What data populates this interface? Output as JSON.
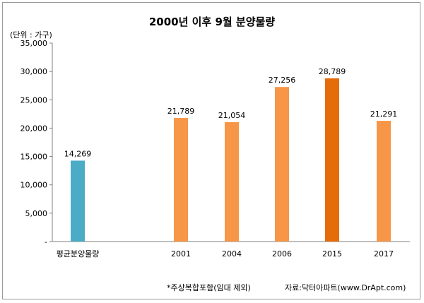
{
  "chart_data": {
    "type": "bar",
    "title": "2000년 이후 9월 분양물량",
    "unit_label": "(단위 : 가구)",
    "categories": [
      "평균분양물량",
      "2001",
      "2004",
      "2006",
      "2015",
      "2017"
    ],
    "values": [
      14269,
      21789,
      21054,
      27256,
      28789,
      21291
    ],
    "value_labels": [
      "14,269",
      "21,789",
      "21,054",
      "27,256",
      "28,789",
      "21,291"
    ],
    "ylim": [
      0,
      35000
    ],
    "y_ticks": [
      0,
      5000,
      10000,
      15000,
      20000,
      25000,
      30000,
      35000
    ],
    "y_tick_labels": [
      "-",
      "5,000",
      "10,000",
      "15,000",
      "20,000",
      "25,000",
      "30,000",
      "35,000"
    ],
    "grid": false,
    "colors": [
      "#4bacc6",
      "#f79646",
      "#f79646",
      "#f79646",
      "#e46c0a",
      "#f79646"
    ]
  },
  "footnote": "*주상복합포함(임대 제외)",
  "source": "자료:닥터아파트(www.DrApt.com)"
}
